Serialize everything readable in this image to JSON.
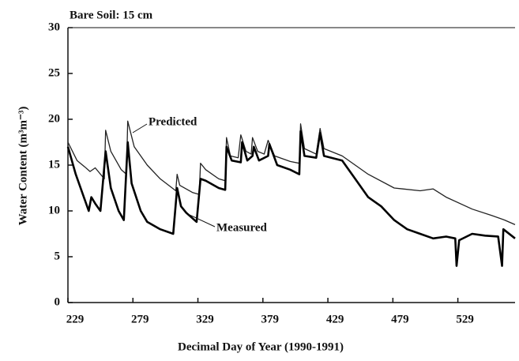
{
  "chart_data": {
    "type": "line",
    "title": "Bare Soil: 15 cm",
    "x_label": "Decimal Day of Year (1990-1991)",
    "y_label": "Water Content (m³m⁻³)",
    "xlim": [
      229,
      573
    ],
    "xticks": [
      229,
      279,
      329,
      379,
      429,
      479,
      529
    ],
    "ylim": [
      0,
      30
    ],
    "yticks": [
      0,
      5,
      10,
      15,
      20,
      25,
      30
    ],
    "annotations": [
      "Predicted",
      "Measured"
    ],
    "series": [
      {
        "name": "Predicted",
        "color": "#222222",
        "x": [
          229,
          236,
          242,
          246,
          250,
          257,
          258,
          262,
          270,
          274,
          275,
          280,
          290,
          300,
          312,
          313,
          315,
          325,
          330,
          331,
          335,
          345,
          350,
          351,
          354,
          360,
          362,
          366,
          370,
          371,
          375,
          380,
          383,
          388,
          400,
          407,
          408,
          411,
          420,
          423,
          426,
          440,
          460,
          480,
          500,
          510,
          520,
          540,
          555,
          565,
          573
        ],
        "values": [
          17.5,
          15.5,
          14.8,
          14.3,
          14.7,
          13.5,
          18.8,
          16.5,
          14.5,
          14,
          19.8,
          17,
          15,
          13.5,
          12.2,
          14,
          12.8,
          12,
          11.8,
          15.2,
          14.5,
          13.5,
          13.3,
          18,
          16,
          15.8,
          18.3,
          16.5,
          16.2,
          18,
          16.5,
          16.2,
          17.7,
          16,
          15.4,
          15.2,
          19.5,
          16.8,
          16.2,
          19,
          16.8,
          16,
          14,
          12.5,
          12.2,
          12.4,
          11.5,
          10.2,
          9.5,
          9,
          8.5
        ]
      },
      {
        "name": "Measured",
        "color": "#000000",
        "x": [
          229,
          235,
          240,
          245,
          247,
          250,
          254,
          258,
          262,
          268,
          272,
          275,
          278,
          285,
          290,
          300,
          310,
          313,
          316,
          320,
          328,
          331,
          335,
          345,
          350,
          351,
          355,
          362,
          363,
          367,
          371,
          372,
          376,
          383,
          384,
          390,
          400,
          407,
          408,
          411,
          420,
          423,
          426,
          440,
          450,
          460,
          470,
          480,
          490,
          500,
          510,
          520,
          527,
          528,
          530,
          540,
          550,
          560,
          563,
          564,
          573
        ],
        "values": [
          17,
          14,
          12,
          10,
          11.5,
          10.8,
          10,
          16.5,
          12.5,
          10,
          9,
          17.5,
          13,
          10,
          8.8,
          8,
          7.5,
          12.5,
          10.5,
          9.8,
          8.8,
          13.5,
          13.3,
          12.5,
          12.3,
          17,
          15.5,
          15.3,
          17.5,
          15.5,
          16,
          17,
          15.5,
          16,
          17.3,
          15,
          14.5,
          14,
          18.7,
          16,
          15.8,
          18.5,
          16,
          15.5,
          13.5,
          11.5,
          10.5,
          9,
          8,
          7.5,
          7,
          7.2,
          7,
          4,
          6.8,
          7.5,
          7.3,
          7.2,
          4,
          8,
          7
        ]
      }
    ]
  }
}
